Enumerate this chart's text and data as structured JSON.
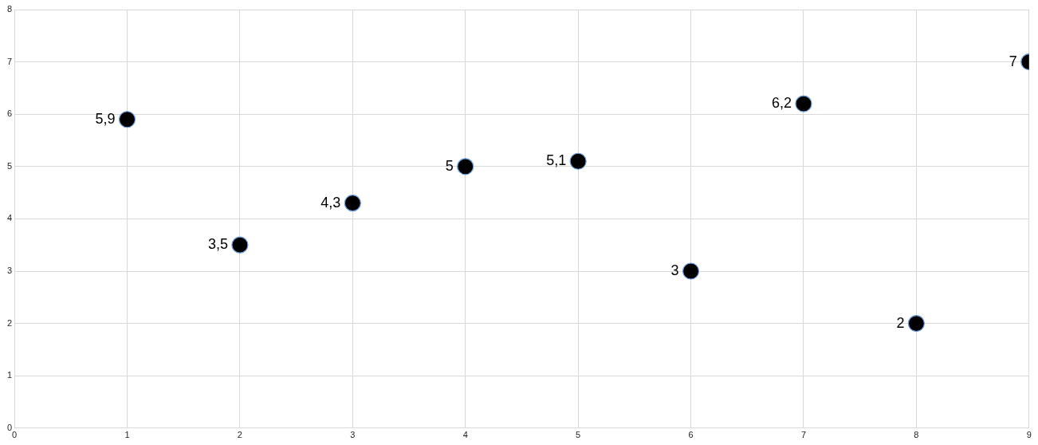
{
  "chart_data": {
    "type": "scatter",
    "x": [
      1,
      2,
      3,
      4,
      5,
      6,
      7,
      8,
      9
    ],
    "values": [
      5.9,
      3.5,
      4.3,
      5,
      5.1,
      3,
      6.2,
      2,
      7
    ],
    "value_labels": [
      "5,9",
      "3,5",
      "4,3",
      "5",
      "5,1",
      "3",
      "6,2",
      "2",
      "7"
    ],
    "color": "#000000",
    "marker": "circle",
    "xlim": [
      0,
      9
    ],
    "ylim": [
      0,
      8
    ],
    "xticks": [
      0,
      1,
      2,
      3,
      4,
      5,
      6,
      7,
      8,
      9
    ],
    "yticks": [
      0,
      1,
      2,
      3,
      4,
      5,
      6,
      7,
      8
    ],
    "grid": true
  }
}
